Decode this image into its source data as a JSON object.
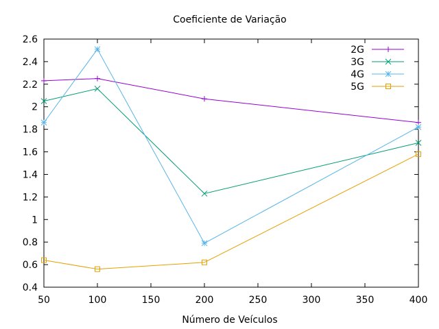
{
  "chart_data": {
    "type": "line",
    "title": "Coeficiente de Variação",
    "xlabel": "Número de Veículos",
    "ylabel": "",
    "xlim": [
      50,
      400
    ],
    "ylim": [
      0.4,
      2.6
    ],
    "x_ticks": [
      "50",
      "100",
      "150",
      "200",
      "250",
      "300",
      "350",
      "400"
    ],
    "y_ticks": [
      "0.4",
      "0.6",
      "0.8",
      "1",
      "1.2",
      "1.4",
      "1.6",
      "1.8",
      "2",
      "2.2",
      "2.4",
      "2.6"
    ],
    "x_tick_values": [
      50,
      100,
      150,
      200,
      250,
      300,
      350,
      400
    ],
    "y_tick_values": [
      0.4,
      0.6,
      0.8,
      1.0,
      1.2,
      1.4,
      1.6,
      1.8,
      2.0,
      2.2,
      2.4,
      2.6
    ],
    "x": [
      50,
      100,
      200,
      400
    ],
    "grid": false,
    "legend_position": "top-right",
    "series": [
      {
        "name": "2G",
        "values": [
          2.23,
          2.25,
          2.07,
          1.86
        ],
        "color": "#9400d3",
        "marker": "plus"
      },
      {
        "name": "3G",
        "values": [
          2.05,
          2.16,
          1.23,
          1.68
        ],
        "color": "#009e73",
        "marker": "cross"
      },
      {
        "name": "4G",
        "values": [
          1.86,
          2.51,
          0.79,
          1.82
        ],
        "color": "#56b4e9",
        "marker": "star"
      },
      {
        "name": "5G",
        "values": [
          0.64,
          0.56,
          0.62,
          1.58
        ],
        "color": "#e69f00",
        "marker": "square"
      }
    ]
  }
}
